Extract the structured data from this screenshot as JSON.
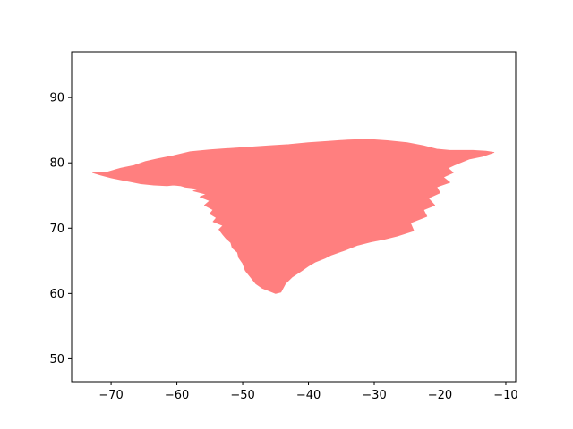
{
  "chart_data": {
    "type": "area",
    "title": "",
    "xlabel": "",
    "ylabel": "",
    "xlim": [
      -76,
      -8.5
    ],
    "ylim": [
      46.5,
      97
    ],
    "xticks": [
      -70,
      -60,
      -50,
      -40,
      -30,
      -20,
      -10
    ],
    "xtick_labels": [
      "−70",
      "−60",
      "−50",
      "−40",
      "−30",
      "−20",
      "−10"
    ],
    "yticks": [
      50,
      60,
      70,
      80,
      90
    ],
    "ytick_labels": [
      "50",
      "60",
      "70",
      "80",
      "90"
    ],
    "grid": false,
    "fill_color": "#ff7f7f",
    "series": [
      {
        "shape": "greenland-outline",
        "lon": [
          -72.8,
          -70.5,
          -68.5,
          -66.5,
          -64.8,
          -63.0,
          -60.5,
          -58.0,
          -55.0,
          -52.0,
          -49.0,
          -46.0,
          -43.0,
          -40.0,
          -37.0,
          -34.0,
          -31.0,
          -28.0,
          -25.0,
          -22.5,
          -20.5,
          -18.5,
          -15.0,
          -13.0,
          -11.8,
          -13.5,
          -15.5,
          -17.5,
          -18.8,
          -18.0,
          -19.5,
          -18.5,
          -20.5,
          -20.0,
          -21.8,
          -20.8,
          -22.5,
          -22.0,
          -24.5,
          -24.0,
          -26.5,
          -28.5,
          -30.5,
          -32.5,
          -34.5,
          -36.5,
          -37.5,
          -39.0,
          -40.0,
          -41.0,
          -42.5,
          -43.5,
          -44.2,
          -45.0,
          -46.0,
          -47.0,
          -48.0,
          -48.8,
          -49.6,
          -50.0,
          -50.6,
          -50.8,
          -51.6,
          -51.8,
          -52.5,
          -53.0,
          -53.6,
          -53.0,
          -54.5,
          -54.0,
          -55.0,
          -54.5,
          -55.8,
          -55.0,
          -56.5,
          -55.5,
          -57.5,
          -56.5,
          -58.8,
          -59.5,
          -60.5,
          -61.5,
          -63.5,
          -65.5,
          -67.0,
          -68.5,
          -70.0,
          -71.5,
          -72.8
        ],
        "lat": [
          78.5,
          78.6,
          79.2,
          79.6,
          80.2,
          80.6,
          81.1,
          81.7,
          82.0,
          82.2,
          82.4,
          82.6,
          82.8,
          83.1,
          83.3,
          83.5,
          83.6,
          83.4,
          83.1,
          82.6,
          82.1,
          81.9,
          81.9,
          81.8,
          81.6,
          81.0,
          80.6,
          79.8,
          79.2,
          78.5,
          77.8,
          77.0,
          76.3,
          75.4,
          74.6,
          73.5,
          72.8,
          71.8,
          70.8,
          69.6,
          68.8,
          68.3,
          67.9,
          67.4,
          66.6,
          65.9,
          65.4,
          64.8,
          64.2,
          63.5,
          62.5,
          61.5,
          60.2,
          60.0,
          60.4,
          60.8,
          61.5,
          62.5,
          63.5,
          64.6,
          65.5,
          66.3,
          67.0,
          67.8,
          68.4,
          69.0,
          69.8,
          70.4,
          71.0,
          71.6,
          72.2,
          72.8,
          73.5,
          74.2,
          74.8,
          75.2,
          75.7,
          76.0,
          76.3,
          76.5,
          76.6,
          76.5,
          76.6,
          76.8,
          77.1,
          77.4,
          77.7,
          78.1,
          78.5
        ]
      }
    ]
  }
}
